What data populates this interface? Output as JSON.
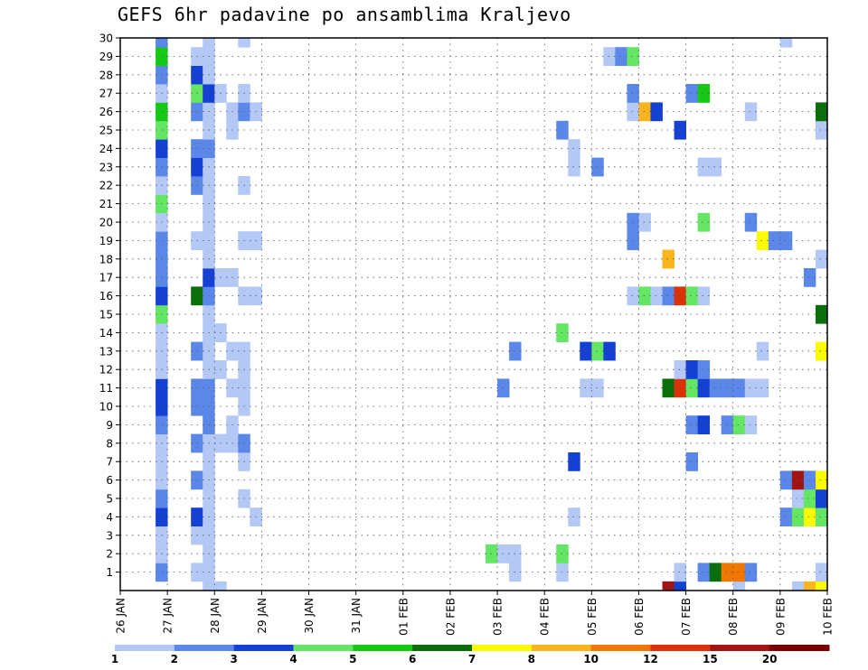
{
  "chart_data": {
    "type": "heatmap",
    "title": "GEFS 6hr padavine po ansamblima Kraljevo",
    "y_tick_labels": [
      "1",
      "2",
      "3",
      "4",
      "5",
      "6",
      "7",
      "8",
      "9",
      "10",
      "11",
      "12",
      "13",
      "14",
      "15",
      "16",
      "17",
      "18",
      "19",
      "20",
      "21",
      "22",
      "23",
      "24",
      "25",
      "26",
      "27",
      "28",
      "29",
      "30"
    ],
    "x_tick_labels": [
      "26 JAN",
      "27 JAN",
      "28 JAN",
      "29 JAN",
      "30 JAN",
      "31 JAN",
      "01 FEB",
      "02 FEB",
      "03 FEB",
      "04 FEB",
      "05 FEB",
      "06 FEB",
      "07 FEB",
      "08 FEB",
      "09 FEB",
      "10 FEB"
    ],
    "x_range_steps": [
      0,
      60
    ],
    "y_range": [
      0,
      30
    ],
    "grid": true,
    "legend": {
      "position": "bottom",
      "labels": [
        "1",
        "2",
        "3",
        "4",
        "5",
        "6",
        "7",
        "8",
        "10",
        "12",
        "15",
        "20"
      ],
      "colors": [
        "#b4c8f5",
        "#5a87e8",
        "#1441d4",
        "#64e664",
        "#14c814",
        "#0a6e0a",
        "#fafa00",
        "#fab41e",
        "#f07800",
        "#dc320a",
        "#a01414",
        "#780000"
      ]
    },
    "cells": [
      [
        4,
        1,
        2
      ],
      [
        4,
        2,
        1
      ],
      [
        4,
        3,
        1
      ],
      [
        4,
        4,
        3
      ],
      [
        4,
        5,
        2
      ],
      [
        4,
        6,
        1
      ],
      [
        4,
        7,
        1
      ],
      [
        4,
        8,
        1
      ],
      [
        4,
        9,
        2
      ],
      [
        4,
        10,
        3
      ],
      [
        4,
        11,
        3
      ],
      [
        4,
        12,
        1
      ],
      [
        4,
        13,
        1
      ],
      [
        4,
        14,
        1
      ],
      [
        4,
        15,
        4
      ],
      [
        4,
        16,
        3
      ],
      [
        4,
        17,
        2
      ],
      [
        4,
        18,
        2
      ],
      [
        4,
        19,
        2
      ],
      [
        4,
        20,
        1
      ],
      [
        4,
        21,
        4
      ],
      [
        4,
        22,
        1
      ],
      [
        4,
        23,
        2
      ],
      [
        4,
        24,
        3
      ],
      [
        4,
        25,
        4
      ],
      [
        4,
        26,
        5
      ],
      [
        4,
        27,
        1
      ],
      [
        4,
        28,
        2
      ],
      [
        4,
        29,
        5
      ],
      [
        4,
        30,
        2
      ],
      [
        7,
        1,
        1
      ],
      [
        7,
        3,
        1
      ],
      [
        7,
        4,
        3
      ],
      [
        7,
        6,
        2
      ],
      [
        7,
        8,
        2
      ],
      [
        7,
        10,
        2
      ],
      [
        7,
        11,
        2
      ],
      [
        7,
        13,
        2
      ],
      [
        7,
        16,
        6
      ],
      [
        7,
        19,
        1
      ],
      [
        7,
        22,
        2
      ],
      [
        7,
        23,
        3
      ],
      [
        7,
        24,
        2
      ],
      [
        7,
        26,
        2
      ],
      [
        7,
        27,
        4
      ],
      [
        7,
        28,
        3
      ],
      [
        7,
        29,
        1
      ],
      [
        8,
        0,
        1
      ],
      [
        8,
        1,
        1
      ],
      [
        8,
        2,
        1
      ],
      [
        8,
        3,
        1
      ],
      [
        8,
        4,
        1
      ],
      [
        8,
        5,
        1
      ],
      [
        8,
        6,
        1
      ],
      [
        8,
        7,
        1
      ],
      [
        8,
        8,
        1
      ],
      [
        8,
        9,
        2
      ],
      [
        8,
        10,
        2
      ],
      [
        8,
        11,
        2
      ],
      [
        8,
        12,
        1
      ],
      [
        8,
        13,
        1
      ],
      [
        8,
        14,
        1
      ],
      [
        8,
        15,
        1
      ],
      [
        8,
        16,
        2
      ],
      [
        8,
        17,
        3
      ],
      [
        8,
        18,
        1
      ],
      [
        8,
        19,
        1
      ],
      [
        8,
        20,
        1
      ],
      [
        8,
        21,
        1
      ],
      [
        8,
        22,
        1
      ],
      [
        8,
        23,
        1
      ],
      [
        8,
        24,
        2
      ],
      [
        8,
        25,
        1
      ],
      [
        8,
        26,
        1
      ],
      [
        8,
        27,
        3
      ],
      [
        8,
        28,
        1
      ],
      [
        8,
        29,
        1
      ],
      [
        8,
        30,
        1
      ],
      [
        9,
        0,
        1
      ],
      [
        9,
        8,
        1
      ],
      [
        9,
        12,
        1
      ],
      [
        9,
        14,
        1
      ],
      [
        9,
        17,
        1
      ],
      [
        9,
        27,
        1
      ],
      [
        10,
        8,
        1
      ],
      [
        10,
        9,
        1
      ],
      [
        10,
        11,
        1
      ],
      [
        10,
        13,
        1
      ],
      [
        10,
        17,
        1
      ],
      [
        10,
        25,
        1
      ],
      [
        10,
        26,
        1
      ],
      [
        11,
        5,
        1
      ],
      [
        11,
        7,
        1
      ],
      [
        11,
        8,
        2
      ],
      [
        11,
        10,
        1
      ],
      [
        11,
        11,
        1
      ],
      [
        11,
        12,
        1
      ],
      [
        11,
        13,
        1
      ],
      [
        11,
        16,
        1
      ],
      [
        11,
        19,
        1
      ],
      [
        11,
        22,
        1
      ],
      [
        11,
        26,
        2
      ],
      [
        11,
        27,
        1
      ],
      [
        11,
        30,
        1
      ],
      [
        12,
        4,
        1
      ],
      [
        12,
        16,
        1
      ],
      [
        12,
        19,
        1
      ],
      [
        12,
        26,
        1
      ],
      [
        32,
        2,
        4
      ],
      [
        33,
        2,
        1
      ],
      [
        33,
        11,
        2
      ],
      [
        34,
        1,
        1
      ],
      [
        34,
        2,
        1
      ],
      [
        34,
        13,
        2
      ],
      [
        38,
        1,
        1
      ],
      [
        38,
        2,
        4
      ],
      [
        38,
        14,
        4
      ],
      [
        38,
        25,
        2
      ],
      [
        39,
        4,
        1
      ],
      [
        39,
        7,
        3
      ],
      [
        39,
        23,
        1
      ],
      [
        39,
        24,
        1
      ],
      [
        40,
        11,
        1
      ],
      [
        40,
        13,
        3
      ],
      [
        41,
        13,
        4
      ],
      [
        41,
        11,
        1
      ],
      [
        41,
        23,
        2
      ],
      [
        42,
        13,
        3
      ],
      [
        42,
        29,
        1
      ],
      [
        43,
        29,
        2
      ],
      [
        44,
        29,
        4
      ],
      [
        44,
        16,
        1
      ],
      [
        44,
        19,
        2
      ],
      [
        44,
        20,
        2
      ],
      [
        44,
        26,
        1
      ],
      [
        44,
        27,
        2
      ],
      [
        45,
        16,
        4
      ],
      [
        45,
        20,
        1
      ],
      [
        45,
        26,
        8
      ],
      [
        46,
        16,
        1
      ],
      [
        46,
        26,
        3
      ],
      [
        47,
        0,
        11
      ],
      [
        47,
        11,
        6
      ],
      [
        47,
        16,
        2
      ],
      [
        47,
        18,
        8
      ],
      [
        48,
        0,
        3
      ],
      [
        48,
        1,
        1
      ],
      [
        48,
        11,
        10
      ],
      [
        48,
        12,
        1
      ],
      [
        48,
        16,
        10
      ],
      [
        48,
        25,
        3
      ],
      [
        49,
        7,
        2
      ],
      [
        49,
        9,
        2
      ],
      [
        49,
        11,
        4
      ],
      [
        49,
        12,
        3
      ],
      [
        49,
        16,
        4
      ],
      [
        49,
        27,
        2
      ],
      [
        50,
        1,
        2
      ],
      [
        50,
        9,
        3
      ],
      [
        50,
        11,
        3
      ],
      [
        50,
        12,
        2
      ],
      [
        50,
        16,
        1
      ],
      [
        50,
        20,
        4
      ],
      [
        50,
        23,
        1
      ],
      [
        50,
        27,
        5
      ],
      [
        51,
        1,
        6
      ],
      [
        51,
        11,
        2
      ],
      [
        51,
        23,
        1
      ],
      [
        52,
        1,
        9
      ],
      [
        52,
        9,
        2
      ],
      [
        52,
        11,
        2
      ],
      [
        53,
        0,
        1
      ],
      [
        53,
        1,
        9
      ],
      [
        53,
        9,
        4
      ],
      [
        53,
        11,
        2
      ],
      [
        54,
        1,
        2
      ],
      [
        54,
        9,
        1
      ],
      [
        54,
        11,
        1
      ],
      [
        54,
        20,
        2
      ],
      [
        54,
        26,
        1
      ],
      [
        55,
        11,
        1
      ],
      [
        55,
        13,
        1
      ],
      [
        55,
        19,
        7
      ],
      [
        56,
        19,
        2
      ],
      [
        57,
        30,
        1
      ],
      [
        57,
        4,
        2
      ],
      [
        57,
        6,
        2
      ],
      [
        57,
        19,
        2
      ],
      [
        58,
        0,
        1
      ],
      [
        58,
        4,
        4
      ],
      [
        58,
        5,
        1
      ],
      [
        58,
        6,
        11
      ],
      [
        59,
        0,
        8
      ],
      [
        59,
        4,
        7
      ],
      [
        59,
        5,
        4
      ],
      [
        59,
        6,
        2
      ],
      [
        59,
        17,
        2
      ],
      [
        60,
        0,
        7
      ],
      [
        60,
        1,
        1
      ],
      [
        60,
        4,
        4
      ],
      [
        60,
        5,
        3
      ],
      [
        60,
        6,
        7
      ],
      [
        60,
        13,
        7
      ],
      [
        60,
        15,
        6
      ],
      [
        60,
        18,
        1
      ],
      [
        60,
        25,
        1
      ],
      [
        60,
        26,
        6
      ]
    ]
  }
}
